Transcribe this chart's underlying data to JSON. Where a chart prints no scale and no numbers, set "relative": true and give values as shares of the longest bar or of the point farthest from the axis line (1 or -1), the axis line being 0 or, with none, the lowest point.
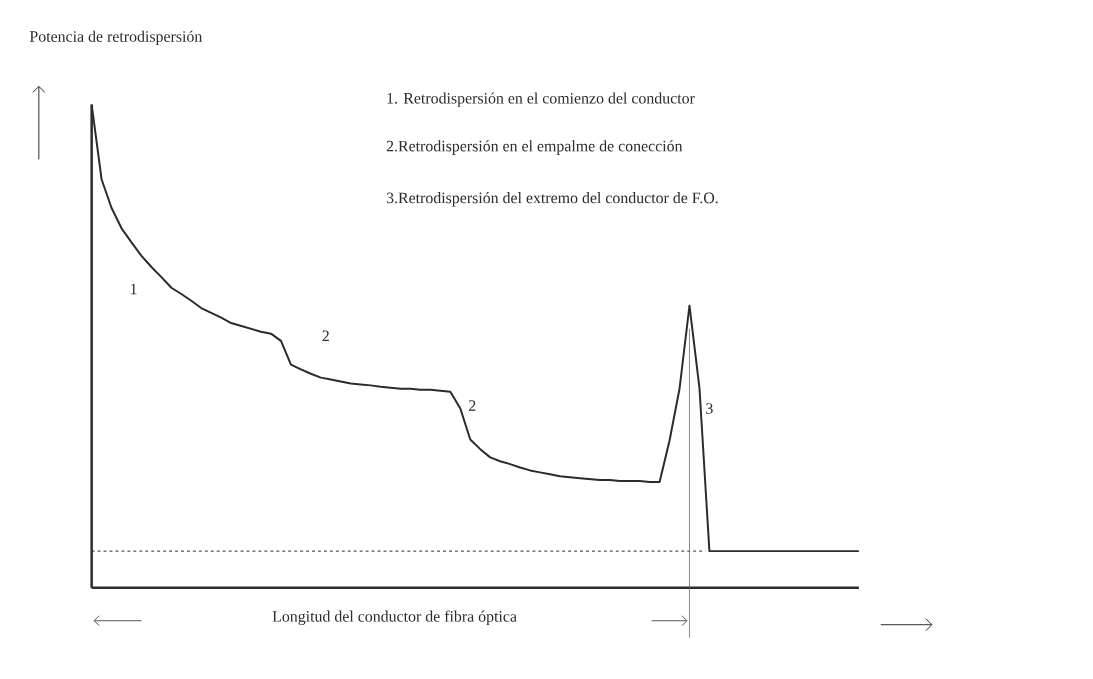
{
  "chart_data": {
    "type": "line",
    "relative": true,
    "color": "#2b2b2b",
    "line_style": "solid",
    "ylabel": "Potencia de retrodispersión",
    "xlabel": "Longitud del conductor de fibra óptica",
    "categories": [
      null,
      null,
      null,
      null,
      null,
      null,
      null,
      null,
      null,
      null,
      null,
      null,
      null,
      null,
      null,
      null,
      null,
      null,
      null,
      null,
      null,
      null,
      null,
      null,
      null,
      null,
      null,
      null,
      null,
      null,
      null,
      null,
      null,
      null,
      null,
      null,
      null,
      null,
      null,
      null,
      null,
      null,
      null,
      null,
      null,
      null,
      null,
      null,
      null,
      null,
      null,
      null,
      null,
      null,
      null,
      null,
      null,
      null,
      null,
      null,
      null,
      null,
      null,
      null,
      null,
      null,
      null,
      null,
      null,
      null,
      null,
      null,
      null,
      null,
      null,
      null,
      null,
      null
    ],
    "values": [
      1.0,
      0.845,
      0.786,
      0.744,
      0.715,
      0.687,
      0.664,
      0.643,
      0.621,
      0.608,
      0.594,
      0.579,
      0.569,
      0.559,
      0.548,
      0.542,
      0.536,
      0.53,
      0.526,
      0.511,
      0.462,
      0.452,
      0.443,
      0.435,
      0.431,
      0.427,
      0.423,
      0.421,
      0.419,
      0.416,
      0.414,
      0.412,
      0.412,
      0.41,
      0.41,
      0.408,
      0.406,
      0.371,
      0.307,
      0.287,
      0.27,
      0.262,
      0.256,
      0.249,
      0.243,
      0.239,
      0.235,
      0.231,
      0.229,
      0.227,
      0.225,
      0.223,
      0.223,
      0.221,
      0.221,
      0.221,
      0.219,
      0.219,
      0.305,
      0.412,
      0.584,
      0.414,
      0.076,
      0.076,
      0.076,
      0.076,
      0.076,
      0.076,
      0.076,
      0.076,
      0.076,
      0.076,
      0.076,
      0.076,
      0.076,
      0.076,
      0.076,
      0.076
    ],
    "ref_lines": [
      {
        "axis": "y",
        "value": 0.076,
        "line_style": "dashed",
        "color": "#2b2b2b"
      }
    ],
    "annotations": [
      "1",
      "2",
      "2",
      "3",
      "1. Retrodispersión en el comienzo del conductor",
      "2.Retrodispersión en el empalme de conección",
      "3.Retrodispersión del extremo del conductor de F.O."
    ]
  }
}
